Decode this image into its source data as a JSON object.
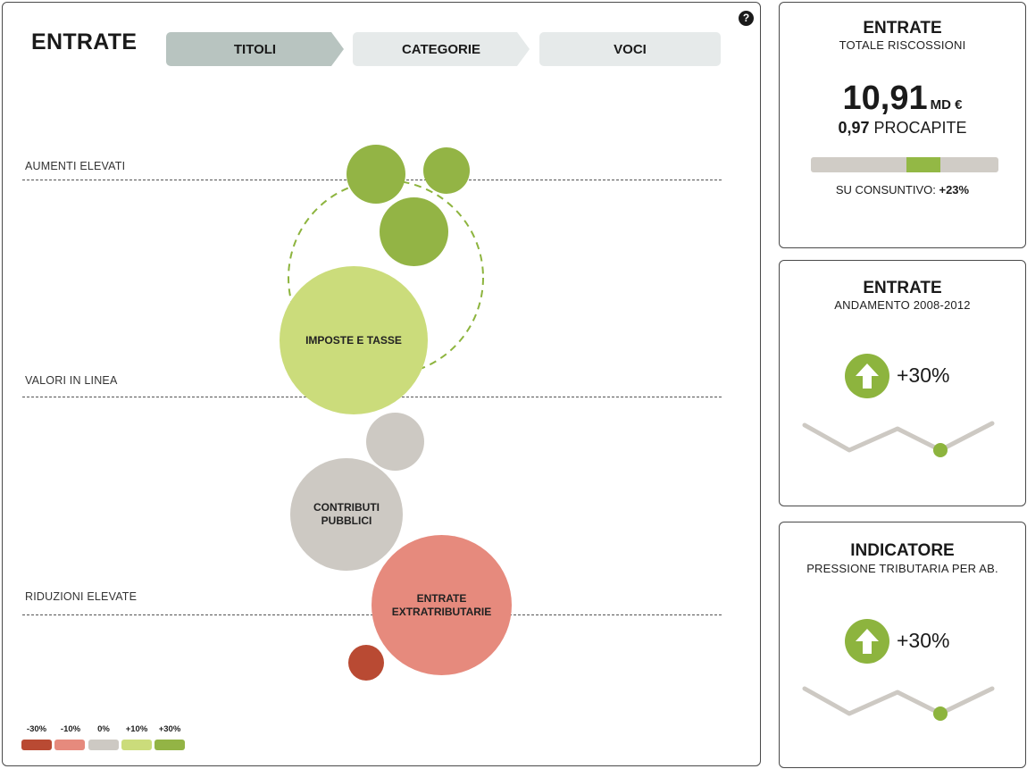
{
  "main": {
    "title": "ENTRATE",
    "help_icon": "?",
    "steps": [
      {
        "label": "TITOLI",
        "active": true
      },
      {
        "label": "CATEGORIE",
        "active": false
      },
      {
        "label": "VOCI",
        "active": false
      }
    ],
    "zones": {
      "aumenti": "AUMENTI ELEVATI",
      "linea": "VALORI IN LINEA",
      "riduzioni": "RIDUZIONI ELEVATE"
    },
    "bubbles": {
      "imposte": "IMPOSTE E TASSE",
      "contributi_1": "CONTRIBUTI",
      "contributi_2": "PUBBLICI",
      "extra_1": "ENTRATE",
      "extra_2": "EXTRATRIBUTARIE"
    },
    "legend": [
      {
        "label": "-30%",
        "color": "#b94a33"
      },
      {
        "label": "-10%",
        "color": "#e68a7d"
      },
      {
        "label": "0%",
        "color": "#cdc9c3"
      },
      {
        "label": "+10%",
        "color": "#cbdc7b"
      },
      {
        "label": "+30%",
        "color": "#93b445"
      }
    ]
  },
  "cards": {
    "riscossioni": {
      "title": "ENTRATE",
      "subtitle": "TOTALE RISCOSSIONI",
      "value": "10,91",
      "unit": "MD €",
      "procapite_value": "0,97",
      "procapite_label": "PROCAPITE",
      "consuntivo_label": "SU CONSUNTIVO:",
      "consuntivo_value": "+23%"
    },
    "andamento": {
      "title": "ENTRATE",
      "subtitle": "ANDAMENTO 2008-2012",
      "trend_icon": "arrow-up-icon",
      "trend_value": "+30%"
    },
    "indicatore": {
      "title": "INDICATORE",
      "subtitle": "PRESSIONE TRIBUTARIA PER AB.",
      "trend_icon": "arrow-up-icon",
      "trend_value": "+30%"
    }
  },
  "colors": {
    "accent_green": "#8db43e",
    "light_green": "#cbdc7b",
    "neutral_gray": "#cdc9c3",
    "salmon": "#e68a7d",
    "red": "#b94a33"
  }
}
